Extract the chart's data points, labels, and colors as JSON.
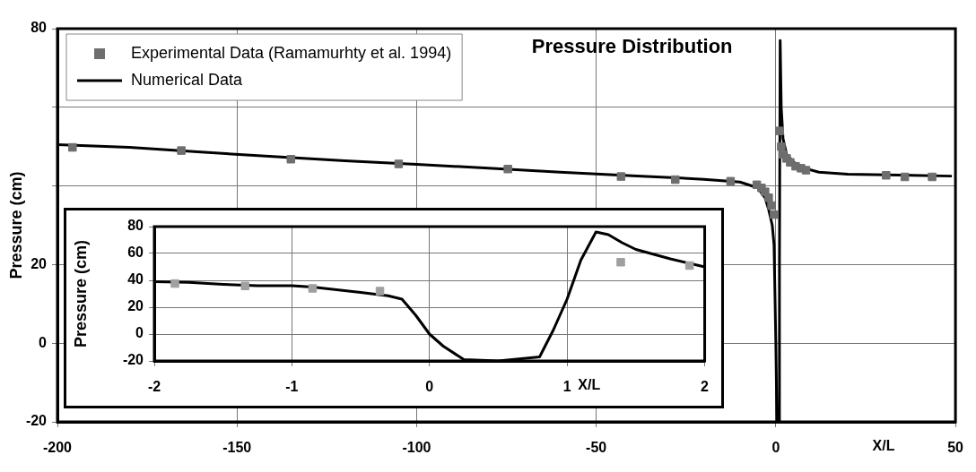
{
  "chart_data": [
    {
      "type": "scatter",
      "title": "Pressure Distribution",
      "xlabel": "X/L",
      "ylabel": "Pressure (cm)",
      "xlim": [
        -200,
        50
      ],
      "xticks": [
        -200,
        -150,
        -100,
        -50,
        0,
        50
      ],
      "ylim": [
        -20,
        80
      ],
      "yticks": [
        80,
        {
          "value": 60,
          "label": null
        },
        {
          "value": 40,
          "label": null
        },
        20,
        0,
        -20
      ],
      "grid": true,
      "legend": "top left",
      "series": [
        {
          "name": "Experimental Data (Ramamurhty et al. 1994)",
          "type": "scatter",
          "marker": "square",
          "color": "#6e6e6e",
          "x": [
            -195.8,
            -165.5,
            -135,
            -105,
            -74.6,
            -43.1,
            -28,
            -12.6,
            -5.3,
            -4,
            -3,
            -2,
            -1.2,
            -0.5,
            1.1,
            1.5,
            2,
            3,
            4,
            5.5,
            7,
            8.4,
            30.7,
            35.9,
            43.5
          ],
          "values": [
            49.8,
            49,
            46.8,
            45.6,
            44.3,
            42.4,
            41.6,
            41.2,
            40.3,
            39.5,
            38.5,
            37,
            35,
            32.7,
            54,
            50,
            48,
            47,
            46,
            45,
            44.5,
            44,
            42.7,
            42.3,
            42.3
          ]
        },
        {
          "name": "Numerical Data",
          "type": "line",
          "marker": "none",
          "color": "#000000",
          "x": [
            -200,
            -180,
            -160,
            -140,
            -120,
            -100,
            -80,
            -60,
            -40,
            -20,
            -10,
            -5,
            -3,
            -2,
            -1,
            -0.5,
            0,
            0.3,
            0.8,
            1,
            1.2,
            1.5,
            2,
            3,
            5,
            8,
            12,
            20,
            49
          ],
          "values": [
            50.5,
            49.8,
            48.6,
            47.5,
            46.4,
            45.5,
            44.5,
            43.5,
            42.6,
            41.7,
            41,
            39.5,
            37,
            34,
            30,
            25,
            0,
            -20,
            -20,
            20,
            77,
            60,
            52,
            48,
            46,
            44.5,
            43.5,
            43,
            42.5
          ]
        }
      ]
    },
    {
      "type": "scatter",
      "xlabel": "X/L",
      "ylabel": "Pressure (cm)",
      "xlim": [
        -2,
        2
      ],
      "xticks": [
        -2,
        -1,
        0,
        1,
        2
      ],
      "ylim": [
        -20,
        80
      ],
      "yticks": [
        80,
        60,
        40,
        20,
        0,
        -20
      ],
      "grid": true,
      "series": [
        {
          "type": "scatter",
          "marker": "square",
          "color": "#a0a0a0",
          "x": [
            -1.85,
            -1.34,
            -0.85,
            -0.36,
            1.39,
            1.89
          ],
          "values": [
            37.6,
            35.8,
            34,
            32,
            53.5,
            51
          ]
        },
        {
          "type": "line",
          "marker": "none",
          "color": "#000000",
          "x": [
            -2,
            -1.75,
            -1.5,
            -1.25,
            -1,
            -0.85,
            -0.5,
            -0.3,
            -0.2,
            -0.1,
            0,
            0.1,
            0.25,
            0.5,
            0.7,
            0.8,
            0.9,
            1,
            1.1,
            1.21,
            1.3,
            1.4,
            1.5,
            1.75,
            2
          ],
          "values": [
            39,
            38.5,
            37,
            36,
            36,
            35,
            31,
            28.5,
            26,
            14,
            0,
            -9,
            -19,
            -20,
            -18,
            -17,
            3,
            26,
            55,
            76,
            74,
            68,
            63,
            56,
            50
          ]
        }
      ]
    }
  ]
}
